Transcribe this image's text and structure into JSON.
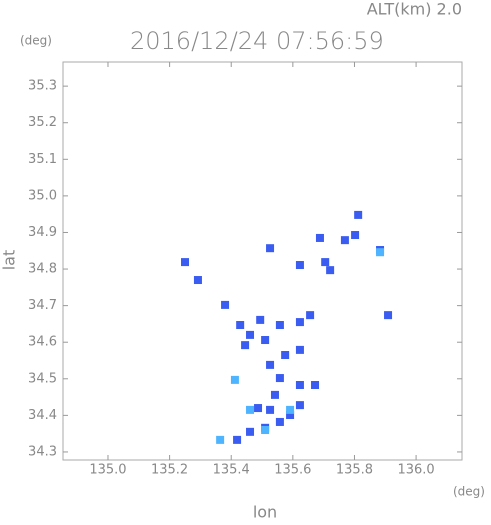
{
  "chart_data": {
    "type": "scatter",
    "title": "2016/12/24 07:56:59",
    "subtitle": "ALT(km) 2.0",
    "y_unit": "(deg)",
    "x_unit": "(deg)",
    "x_label": "lon",
    "y_label": "lat",
    "xlim": [
      134.854,
      136.149
    ],
    "ylim": [
      34.278,
      35.366
    ],
    "xticks": [
      {
        "value": 135,
        "label": "135.0"
      },
      135.2,
      135.4,
      135.6,
      135.8,
      {
        "value": 136,
        "label": "136.0"
      }
    ],
    "yticks": [
      34.3,
      34.4,
      34.5,
      34.6,
      34.7,
      34.8,
      34.9,
      {
        "value": 35,
        "label": "35.0"
      },
      35.1,
      35.2,
      35.3
    ],
    "series": [
      {
        "color": "#3a5cf0",
        "x": [
          135.419,
          135.461,
          135.51,
          135.558,
          135.591,
          135.526,
          135.623,
          135.487,
          135.542,
          135.623,
          135.672,
          135.558,
          135.526,
          135.575,
          135.623,
          135.51,
          135.445,
          135.429,
          135.494,
          135.558,
          135.623,
          135.656,
          135.461,
          135.38,
          135.292,
          135.25,
          135.623,
          135.705,
          135.721,
          135.769,
          135.802,
          135.812,
          135.883,
          135.909,
          135.526,
          135.688
        ],
        "values": [
          34.333,
          34.355,
          34.366,
          34.382,
          34.401,
          34.415,
          34.428,
          34.42,
          34.456,
          34.483,
          34.483,
          34.502,
          34.538,
          34.565,
          34.579,
          34.606,
          34.592,
          34.647,
          34.661,
          34.647,
          34.655,
          34.674,
          34.62,
          34.702,
          34.77,
          34.819,
          34.811,
          34.819,
          34.797,
          34.879,
          34.893,
          34.948,
          34.852,
          34.674,
          34.857,
          34.885
        ]
      },
      {
        "color": "#4fb4ff",
        "x": [
          135.412,
          135.364,
          135.51,
          135.591,
          135.883,
          135.461
        ],
        "values": [
          34.497,
          34.333,
          34.36,
          34.415,
          34.846,
          34.415
        ]
      }
    ]
  }
}
